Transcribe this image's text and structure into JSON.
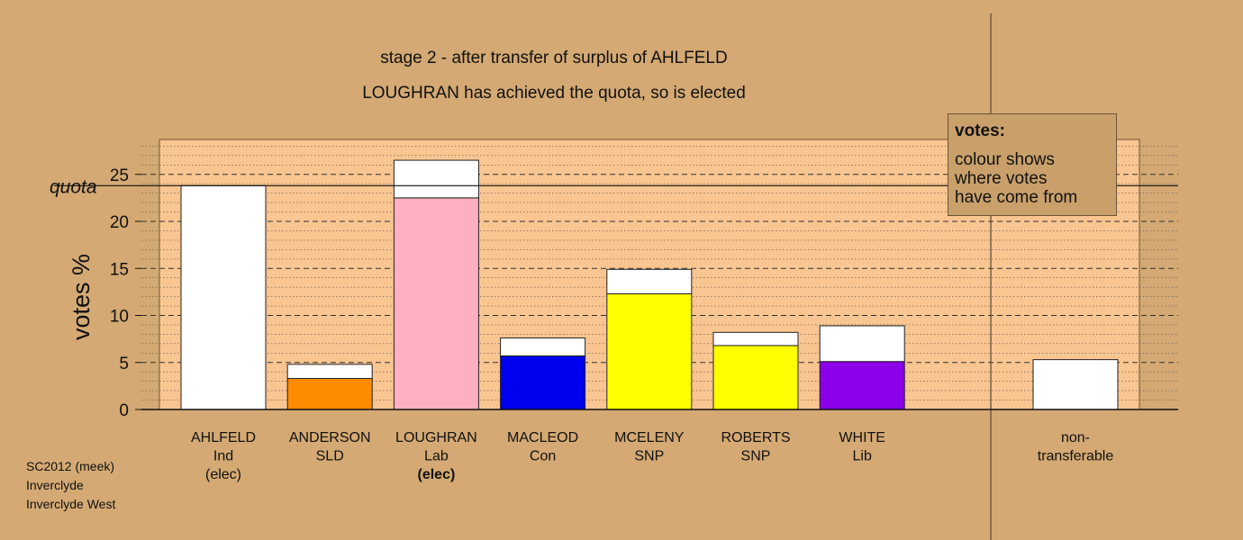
{
  "title_line1": "stage 2 - after transfer of surplus of AHLFELD",
  "title_line2": "LOUGHRAN has achieved the quota, so is elected",
  "legend": {
    "heading": "votes:",
    "line1": "colour shows",
    "line2": "where votes",
    "line3": "have come from"
  },
  "footer": {
    "line1": "SC2012 (meek)",
    "line2": "Inverclyde",
    "line3": "Inverclyde West"
  },
  "colors": {
    "background": "#d4a973",
    "plot_fill": "#f9c590",
    "white": "#ffffff",
    "orange": "#ff8c00",
    "pink": "#ffb0c0",
    "blue": "#0000ee",
    "yellow": "#ffff00",
    "purple": "#8b00e8"
  },
  "chart_data": {
    "type": "bar",
    "stacked": true,
    "ylabel": "votes %",
    "ylim": [
      0,
      29
    ],
    "yticks": [
      0,
      5,
      10,
      15,
      20,
      25
    ],
    "quota": 23.8,
    "quota_label": "quota",
    "bars": [
      {
        "name": "AHLFELD",
        "party": "Ind",
        "note": "(elec)",
        "note_bold": false,
        "base": 0,
        "base_color": "#ffffff",
        "added": 23.8
      },
      {
        "name": "ANDERSON",
        "party": "SLD",
        "note": "",
        "note_bold": false,
        "base": 3.3,
        "base_color": "#ff8c00",
        "added": 1.5
      },
      {
        "name": "LOUGHRAN",
        "party": "Lab",
        "note": "(elec)",
        "note_bold": true,
        "base": 22.5,
        "base_color": "#ffb0c0",
        "added": 4.0
      },
      {
        "name": "MACLEOD",
        "party": "Con",
        "note": "",
        "note_bold": false,
        "base": 5.7,
        "base_color": "#0000ee",
        "added": 1.9
      },
      {
        "name": "MCELENY",
        "party": "SNP",
        "note": "",
        "note_bold": false,
        "base": 12.3,
        "base_color": "#ffff00",
        "added": 2.6
      },
      {
        "name": "ROBERTS",
        "party": "SNP",
        "note": "",
        "note_bold": false,
        "base": 6.8,
        "base_color": "#ffff00",
        "added": 1.4
      },
      {
        "name": "WHITE",
        "party": "Lib",
        "note": "",
        "note_bold": false,
        "base": 5.1,
        "base_color": "#8b00e8",
        "added": 3.8
      }
    ],
    "nontransferable": {
      "label1": "non-",
      "label2": "transferable",
      "value": 5.3
    }
  }
}
